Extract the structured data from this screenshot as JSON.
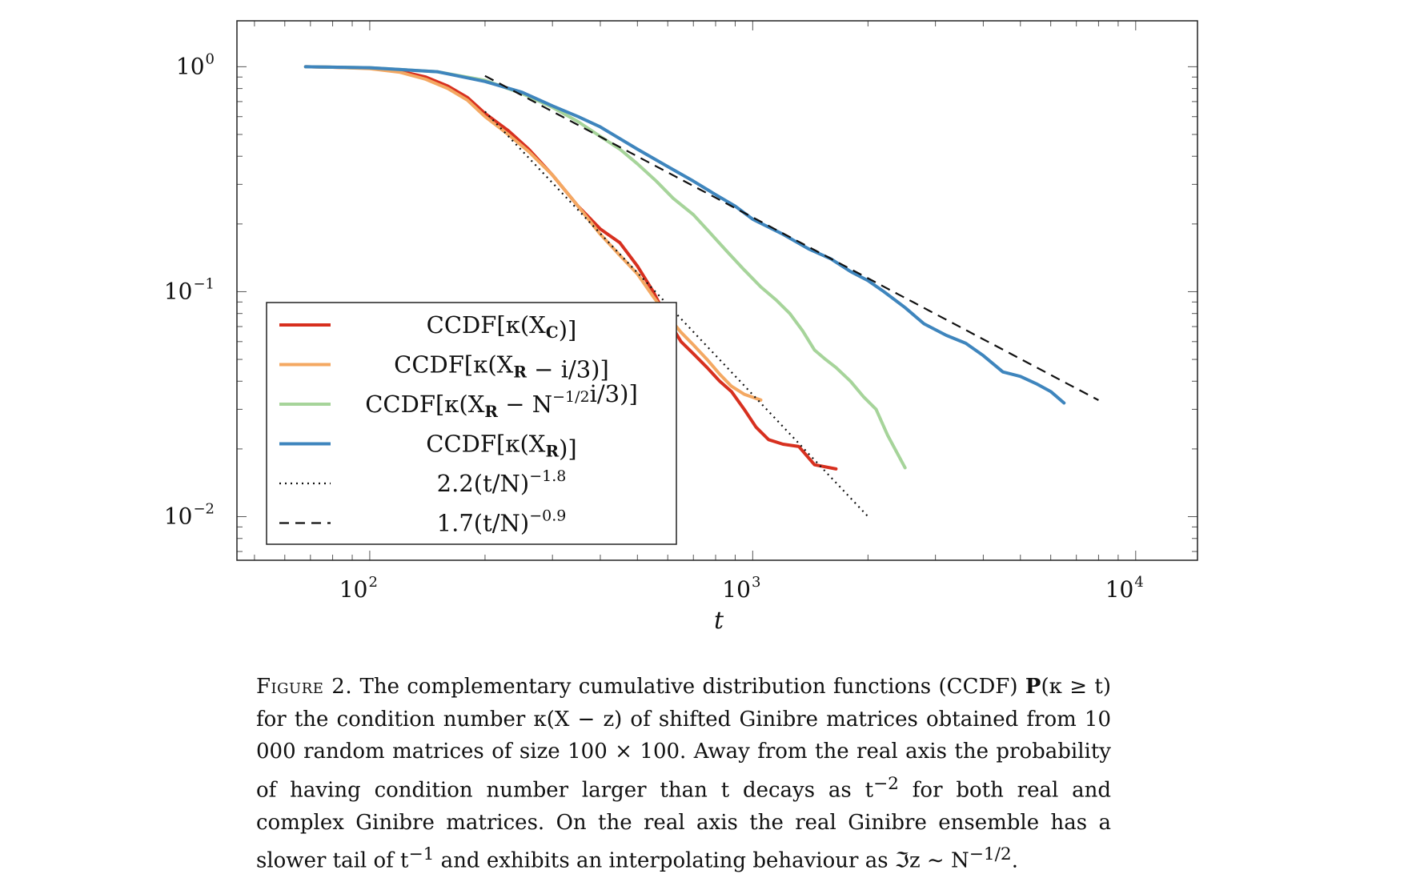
{
  "chart_data": {
    "type": "line",
    "xlabel": "t",
    "xscale": "log",
    "yscale": "log",
    "xlim": [
      45,
      14500
    ],
    "ylim": [
      0.0064,
      1.6
    ],
    "grid": false,
    "legend_placement": "lower-left",
    "x_ticks": [
      {
        "base": "10",
        "exp": "2",
        "value": 100
      },
      {
        "base": "10",
        "exp": "3",
        "value": 1000
      },
      {
        "base": "10",
        "exp": "4",
        "value": 10000
      }
    ],
    "y_ticks": [
      {
        "base": "10",
        "exp": "0",
        "value": 1
      },
      {
        "base": "10",
        "exp": "−1",
        "value": 0.1
      },
      {
        "base": "10",
        "exp": "−2",
        "value": 0.01
      }
    ],
    "series": [
      {
        "name": "CCDF[κ(X_C)]",
        "legend_text": "CCDF[κ(X",
        "legend_sub": "C",
        "legend_tail": ")]",
        "color": "#d7301f",
        "style": "solid",
        "x": [
          68,
          80,
          100,
          120,
          140,
          160,
          180,
          200,
          230,
          260,
          300,
          350,
          400,
          450,
          500,
          550,
          600,
          650,
          700,
          760,
          820,
          880,
          950,
          1020,
          1100,
          1200,
          1320,
          1450,
          1650
        ],
        "y": [
          1.0,
          0.995,
          0.985,
          0.955,
          0.9,
          0.82,
          0.73,
          0.62,
          0.52,
          0.43,
          0.33,
          0.24,
          0.19,
          0.165,
          0.13,
          0.1,
          0.075,
          0.06,
          0.053,
          0.046,
          0.04,
          0.036,
          0.03,
          0.025,
          0.022,
          0.021,
          0.0205,
          0.017,
          0.0163
        ]
      },
      {
        "name": "CCDF[κ(X_R − i/3)]",
        "legend_text": "CCDF[κ(X",
        "legend_sub": "R",
        "legend_tail": " − i/3)]",
        "color": "#f4a862",
        "style": "solid",
        "x": [
          68,
          80,
          100,
          120,
          140,
          160,
          180,
          200,
          230,
          260,
          300,
          350,
          400,
          450,
          500,
          550,
          600,
          650,
          700,
          760,
          820,
          880,
          950,
          1050
        ],
        "y": [
          1.0,
          0.995,
          0.98,
          0.945,
          0.88,
          0.8,
          0.71,
          0.6,
          0.5,
          0.42,
          0.33,
          0.24,
          0.18,
          0.145,
          0.12,
          0.095,
          0.078,
          0.066,
          0.058,
          0.05,
          0.043,
          0.038,
          0.035,
          0.033
        ]
      },
      {
        "name": "CCDF[κ(X_R − N^(−1/2) i/3)]",
        "legend_text": "CCDF[κ(X",
        "legend_sub": "R",
        "legend_mid": " − N",
        "legend_sup": "−1/2",
        "legend_tail": "i/3)]",
        "color": "#a6d49a",
        "style": "solid",
        "x": [
          68,
          100,
          150,
          200,
          250,
          300,
          350,
          400,
          450,
          500,
          560,
          620,
          700,
          780,
          860,
          950,
          1050,
          1150,
          1250,
          1350,
          1450,
          1550,
          1650,
          1800,
          1950,
          2100,
          2250,
          2500
        ],
        "y": [
          1.0,
          0.99,
          0.95,
          0.87,
          0.76,
          0.66,
          0.57,
          0.49,
          0.43,
          0.37,
          0.31,
          0.26,
          0.22,
          0.18,
          0.15,
          0.125,
          0.105,
          0.092,
          0.08,
          0.067,
          0.055,
          0.05,
          0.046,
          0.04,
          0.034,
          0.03,
          0.023,
          0.0165
        ]
      },
      {
        "name": "CCDF[κ(X_R)]",
        "legend_text": "CCDF[κ(X",
        "legend_sub": "R",
        "legend_tail": ")]",
        "color": "#3e85bd",
        "style": "solid",
        "x": [
          68,
          100,
          150,
          200,
          250,
          300,
          350,
          400,
          500,
          600,
          700,
          800,
          900,
          1000,
          1200,
          1400,
          1600,
          1800,
          2000,
          2200,
          2500,
          2800,
          3200,
          3600,
          4000,
          4500,
          5000,
          5500,
          6000,
          6500
        ],
        "y": [
          1.0,
          0.99,
          0.95,
          0.86,
          0.77,
          0.67,
          0.6,
          0.54,
          0.43,
          0.36,
          0.31,
          0.27,
          0.24,
          0.21,
          0.18,
          0.155,
          0.14,
          0.123,
          0.112,
          0.1,
          0.085,
          0.072,
          0.064,
          0.059,
          0.052,
          0.044,
          0.042,
          0.039,
          0.036,
          0.032
        ]
      },
      {
        "name": "2.2(t/N)^−1.8",
        "legend_text": "2.2(t/N)",
        "legend_sup": "−1.8",
        "color": "#111111",
        "style": "dotted",
        "coef": 2.2,
        "exponent": -1.8,
        "N": 100,
        "x_range": [
          200,
          2000
        ]
      },
      {
        "name": "1.7(t/N)^−0.9",
        "legend_text": "1.7(t/N)",
        "legend_sup": "−0.9",
        "color": "#111111",
        "style": "dashed",
        "coef": 1.7,
        "exponent": -0.9,
        "N": 100,
        "x_range": [
          200,
          8000
        ]
      }
    ]
  },
  "caption": {
    "label": "Figure 2.",
    "part1": "The complementary cumulative distribution functions (CCDF) ",
    "prob_symbol": "P",
    "part2": "(κ ≥ t) for the condition number κ(X − z) of shifted Ginibre matrices obtained from 10 000 random matrices of size 100 × 100. Away from the real axis the probability of having condition number larger than t decays as t",
    "exp1": "−2",
    "part3": " for both real and complex Ginibre matrices. On the real axis the real Ginibre ensemble has a slower tail of t",
    "exp2": "−1",
    "part4": " and exhibits an interpolating behaviour as ℑz ∼ N",
    "exp3": "−1/2",
    "part5": "."
  }
}
